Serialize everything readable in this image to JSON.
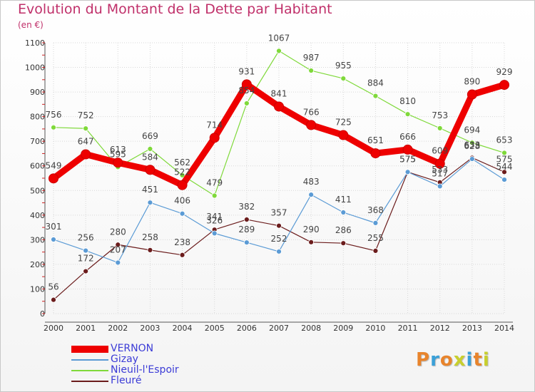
{
  "title": "Evolution du Montant de la Dette par Habitant",
  "subtitle": "(en €)",
  "logo": {
    "text": "Proxiti",
    "colors": [
      "#e8842c",
      "#3aa0d8",
      "#e8842c",
      "#c8cf2e",
      "#3aa0d8",
      "#e8842c",
      "#c8cf2e"
    ]
  },
  "chart_data": {
    "type": "line",
    "title": "Evolution du Montant de la Dette par Habitant",
    "ylabel": "(en €)",
    "xlabel": "",
    "x": [
      "2000",
      "2001",
      "2002",
      "2003",
      "2004",
      "2005",
      "2006",
      "2007",
      "2008",
      "2009",
      "2010",
      "2011",
      "2012",
      "2013",
      "2014"
    ],
    "ylim": [
      0,
      1100
    ],
    "yticks": [
      0,
      100,
      200,
      300,
      400,
      500,
      600,
      700,
      800,
      900,
      1000,
      1100
    ],
    "grid": true,
    "legend": "bottom-left",
    "series": [
      {
        "name": "VERNON",
        "color": "#ee0000",
        "values": [
          549,
          647,
          613,
          584,
          522,
          714,
          931,
          841,
          766,
          725,
          651,
          666,
          609,
          890,
          929
        ]
      },
      {
        "name": "Gizay",
        "color": "#5b9bd5",
        "values": [
          301,
          256,
          207,
          451,
          406,
          326,
          289,
          252,
          483,
          411,
          368,
          575,
          517,
          628,
          544
        ]
      },
      {
        "name": "Nieuil-l'Espoir",
        "color": "#7fd93a",
        "values": [
          756,
          752,
          595,
          669,
          562,
          479,
          854,
          1067,
          987,
          955,
          884,
          810,
          753,
          694,
          653
        ]
      },
      {
        "name": "Fleuré",
        "color": "#6b1c1c",
        "values": [
          56,
          172,
          280,
          258,
          238,
          341,
          382,
          357,
          290,
          286,
          255,
          575,
          533,
          633,
          575
        ]
      }
    ]
  }
}
